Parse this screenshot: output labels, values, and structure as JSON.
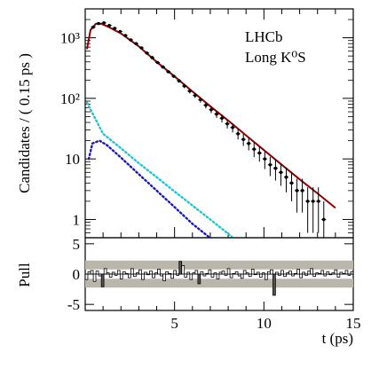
{
  "chart_data": [
    {
      "type": "scatter",
      "panel": "main",
      "ylabel": "Candidates / ( 0.15 ps )",
      "yscale": "log",
      "ylim": [
        0.5,
        3000
      ],
      "xlim": [
        0,
        15
      ],
      "yticks": [
        1,
        10,
        100,
        1000
      ],
      "ytick_labels": [
        "1",
        "10",
        "10²",
        "10³"
      ],
      "annotations": [
        "LHCb",
        "Long K⁰S"
      ],
      "series": [
        {
          "style": "points-with-errors",
          "color": "#000000",
          "x": [
            0.45,
            0.75,
            1.05,
            1.35,
            1.65,
            1.95,
            2.25,
            2.55,
            2.85,
            3.15,
            3.45,
            3.75,
            4.05,
            4.35,
            4.65,
            4.95,
            5.25,
            5.55,
            5.85,
            6.15,
            6.45,
            6.75,
            7.05,
            7.35,
            7.65,
            7.95,
            8.25,
            8.55,
            8.85,
            9.15,
            9.45,
            9.75,
            10.05,
            10.35,
            10.65,
            10.95,
            11.25,
            11.55,
            11.85,
            12.15,
            12.45,
            12.75,
            13.05,
            13.35
          ],
          "y": [
            1500,
            1720,
            1760,
            1600,
            1430,
            1270,
            1090,
            920,
            800,
            680,
            560,
            470,
            390,
            330,
            275,
            232,
            195,
            160,
            132,
            112,
            95,
            77,
            65,
            55,
            47,
            38,
            33,
            26,
            21,
            18,
            14.5,
            12.5,
            10,
            8,
            7,
            6,
            5,
            4,
            3,
            3,
            2,
            2,
            2,
            1
          ],
          "yerr": [
            39,
            41,
            42,
            40,
            38,
            36,
            33,
            30,
            28,
            26,
            24,
            22,
            20,
            18,
            17,
            15,
            14,
            13,
            11.5,
            10.6,
            9.7,
            8.8,
            8.1,
            7.4,
            6.9,
            6.2,
            5.7,
            5.1,
            4.6,
            4.2,
            3.8,
            3.5,
            3.2,
            2.8,
            2.6,
            2.4,
            2.2,
            2,
            1.7,
            1.7,
            1.4,
            1.4,
            1.4,
            1
          ]
        },
        {
          "style": "line",
          "color": "#8b0000",
          "x": [
            0.1,
            0.3,
            0.6,
            0.9,
            1.2,
            1.5,
            2,
            3,
            4,
            5,
            6,
            7,
            8,
            9,
            10,
            11,
            12,
            13,
            14
          ],
          "y": [
            650,
            1350,
            1700,
            1700,
            1560,
            1410,
            1180,
            720,
            400,
            230,
            130,
            74,
            43,
            24.5,
            14,
            8,
            4.6,
            2.7,
            1.55
          ]
        },
        {
          "style": "dotted",
          "color": "#22c4d8",
          "x": [
            0.1,
            1,
            2,
            3,
            4,
            5,
            6,
            7,
            8,
            8.2
          ],
          "y": [
            85,
            26,
            15,
            8.5,
            5,
            2.9,
            1.7,
            1,
            0.58,
            0.52
          ]
        },
        {
          "style": "dotted",
          "color": "#1a1ab4",
          "x": [
            0.2,
            0.4,
            0.8,
            1.2,
            2,
            3,
            4,
            5,
            6,
            6.9
          ],
          "y": [
            10,
            18,
            20,
            17,
            10.5,
            5.6,
            3,
            1.6,
            0.85,
            0.52
          ]
        }
      ]
    },
    {
      "type": "bar",
      "panel": "pull",
      "xlabel": "t (ps)",
      "ylabel": "Pull",
      "ylim": [
        -6,
        6
      ],
      "xlim": [
        0,
        15
      ],
      "yticks": [
        -5,
        0,
        5
      ],
      "ytick_labels": [
        "-5",
        "0",
        "5"
      ],
      "xticks": [
        5,
        10,
        15
      ],
      "xtick_labels": [
        "5",
        "10",
        "15"
      ],
      "bands": [
        1.5,
        -1.5
      ],
      "x": [
        0.075,
        0.225,
        0.375,
        0.525,
        0.675,
        0.825,
        0.975,
        1.125,
        1.275,
        1.425,
        1.575,
        1.725,
        1.875,
        2.025,
        2.175,
        2.325,
        2.475,
        2.625,
        2.775,
        2.925,
        3.075,
        3.225,
        3.375,
        3.525,
        3.675,
        3.825,
        3.975,
        4.125,
        4.275,
        4.425,
        4.575,
        4.725,
        4.875,
        5.025,
        5.175,
        5.325,
        5.475,
        5.625,
        5.775,
        5.925,
        6.075,
        6.225,
        6.375,
        6.525,
        6.675,
        6.825,
        6.975,
        7.125,
        7.275,
        7.425,
        7.575,
        7.725,
        7.875,
        8.025,
        8.175,
        8.325,
        8.475,
        8.625,
        8.775,
        8.925,
        9.075,
        9.225,
        9.375,
        9.525,
        9.675,
        9.825,
        9.975,
        10.125,
        10.275,
        10.425,
        10.575,
        10.725,
        10.875,
        11.025,
        11.175,
        11.325,
        11.475,
        11.625,
        11.775,
        11.925,
        12.075,
        12.225,
        12.375,
        12.525,
        12.675,
        12.825,
        12.975,
        13.125,
        13.275,
        13.425,
        13.575,
        13.725,
        13.875,
        14.025,
        14.175,
        14.325,
        14.475,
        14.625,
        14.775,
        14.925
      ],
      "values": [
        -0.9,
        0.4,
        0.6,
        -1.2,
        0.5,
        -0.3,
        -2.1,
        0.9,
        0.2,
        -0.5,
        0.3,
        -0.2,
        0.6,
        -0.8,
        0.4,
        0.1,
        -0.6,
        0.9,
        -0.4,
        0.2,
        0.7,
        -0.9,
        0.3,
        -0.1,
        0.5,
        -0.6,
        0.2,
        0.8,
        -0.3,
        -1.1,
        0.4,
        0.1,
        -0.7,
        0.6,
        -0.2,
        2.1,
        1.4,
        -0.5,
        0.3,
        -0.9,
        0.2,
        0.6,
        -1.6,
        0.4,
        -0.3,
        0.1,
        0.7,
        -0.5,
        0.2,
        -0.8,
        0.3,
        0.5,
        -0.2,
        0.9,
        -0.6,
        0.1,
        0.4,
        -0.3,
        -0.7,
        0.6,
        0.2,
        -0.4,
        0.8,
        -0.1,
        0.3,
        -0.5,
        0.2,
        -0.9,
        0.4,
        0.7,
        -3.5,
        0.3,
        -0.2,
        0.6,
        -0.4,
        0.2,
        0.5,
        -0.3,
        0.1,
        0.8,
        -0.6,
        0.3,
        -0.2,
        0.5,
        0.9,
        -0.4,
        0.2,
        0.1,
        0.6,
        -0.3,
        0.4,
        -0.1,
        0.2,
        0.7,
        -0.5,
        0.3,
        0.1,
        0.6,
        -0.2,
        0.4
      ]
    }
  ]
}
